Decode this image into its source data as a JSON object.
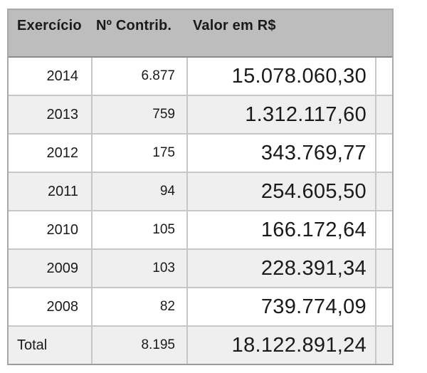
{
  "table": {
    "headers": {
      "exercicio": "Exercício",
      "contrib": "Nº Contrib.",
      "valor": "Valor em R$"
    },
    "rows": [
      {
        "exercicio": "2014",
        "contrib": "6.877",
        "valor": "15.078.060,30"
      },
      {
        "exercicio": "2013",
        "contrib": "759",
        "valor": "1.312.117,60"
      },
      {
        "exercicio": "2012",
        "contrib": "175",
        "valor": "343.769,77"
      },
      {
        "exercicio": "2011",
        "contrib": "94",
        "valor": "254.605,50"
      },
      {
        "exercicio": "2010",
        "contrib": "105",
        "valor": "166.172,64"
      },
      {
        "exercicio": "2009",
        "contrib": "103",
        "valor": "228.391,34"
      },
      {
        "exercicio": "2008",
        "contrib": "82",
        "valor": "739.774,09"
      }
    ],
    "total_row": {
      "label": "Total",
      "contrib": "8.195",
      "valor": "18.122.891,24"
    },
    "colors": {
      "header_bg": "#bdbdbd",
      "header_border": "#8c8c8c",
      "row_bg": "#ffffff",
      "row_alt_bg": "#efefef",
      "grid_border": "#c7c7c7",
      "outer_border": "#a9a9a9",
      "text": "#1a1a1a"
    }
  },
  "chart_data": {
    "type": "table",
    "title": "",
    "columns": [
      "Exercício",
      "Nº Contrib.",
      "Valor em R$"
    ],
    "rows": [
      [
        "2014",
        6877,
        15078060.3
      ],
      [
        "2013",
        759,
        1312117.6
      ],
      [
        "2012",
        175,
        343769.77
      ],
      [
        "2011",
        94,
        254605.5
      ],
      [
        "2010",
        105,
        166172.64
      ],
      [
        "2009",
        103,
        228391.34
      ],
      [
        "2008",
        82,
        739774.09
      ]
    ],
    "total": [
      "Total",
      8195,
      18122891.24
    ],
    "number_format": "pt-BR",
    "layout_hints": {
      "zebra_striping": true,
      "header_background": "gray",
      "value_column_font_larger": true,
      "alignment": {
        "Exercício": "right",
        "Nº Contrib.": "right",
        "Valor em R$": "right",
        "total_label": "left"
      }
    }
  }
}
